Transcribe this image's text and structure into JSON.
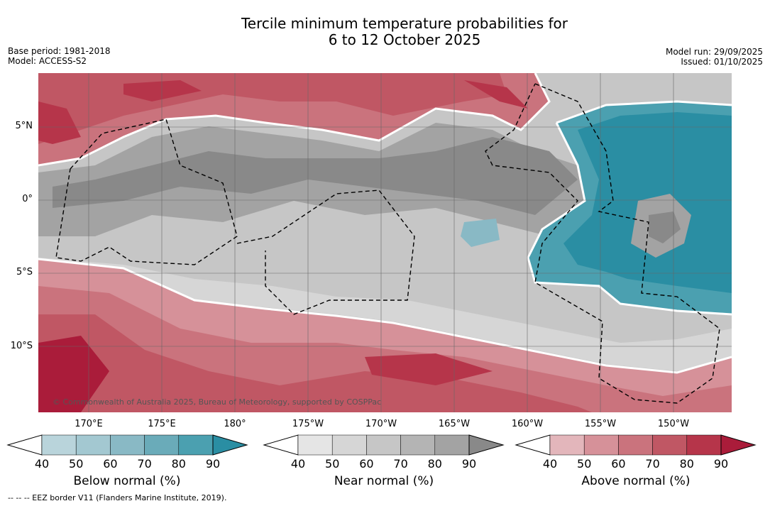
{
  "title_line1": "Tercile minimum temperature probabilities for",
  "title_line2": "6 to 12 October 2025",
  "base_period": "Base period: 1981-2018",
  "model": "Model: ACCESS-S2",
  "model_run": "Model run: 29/09/2025",
  "issued": "Issued: 01/10/2025",
  "copyright": "© Commonwealth of Australia 2025, Bureau of Meteorology, supported by COSPPac",
  "lat_labels": [
    "5°N",
    "0°",
    "5°S",
    "10°S"
  ],
  "lon_labels": [
    "170°E",
    "175°E",
    "180°",
    "175°W",
    "170°W",
    "165°W",
    "160°W",
    "155°W",
    "150°W"
  ],
  "colorbars": [
    {
      "label": "Below normal (%)",
      "ticks": [
        "40",
        "50",
        "60",
        "70",
        "80",
        "90"
      ],
      "colors": [
        "#ffffff",
        "#b9d4db",
        "#a3c8d1",
        "#89b9c5",
        "#6aabb9",
        "#4ba0b0",
        "#2a8ea3"
      ]
    },
    {
      "label": "Near normal (%)",
      "ticks": [
        "40",
        "50",
        "60",
        "70",
        "80",
        "90"
      ],
      "colors": [
        "#ffffff",
        "#e5e5e5",
        "#d6d6d6",
        "#c6c6c6",
        "#b4b4b4",
        "#a3a3a3",
        "#898989"
      ]
    },
    {
      "label": "Above normal (%)",
      "ticks": [
        "40",
        "50",
        "60",
        "70",
        "80",
        "90"
      ],
      "colors": [
        "#ffffff",
        "#e3b6bb",
        "#d69199",
        "#ca737d",
        "#c05764",
        "#b6354a",
        "#aa1c3a"
      ]
    }
  ],
  "footer": "--  --  -- EEZ border V11 (Flanders Marine Institute, 2019)."
}
